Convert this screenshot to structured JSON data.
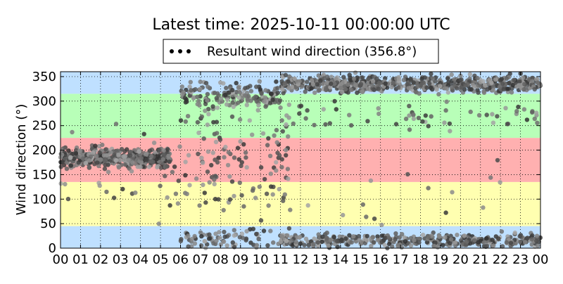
{
  "chart_data": {
    "type": "scatter",
    "title": "Latest time: 2025-10-11 00:00:00 UTC",
    "xlabel": "",
    "ylabel": "Wind direction (°)",
    "xlim": [
      0,
      24
    ],
    "ylim": [
      0,
      360
    ],
    "x_tick_labels": [
      "00",
      "01",
      "02",
      "03",
      "04",
      "05",
      "06",
      "07",
      "08",
      "09",
      "10",
      "11",
      "12",
      "13",
      "14",
      "15",
      "16",
      "17",
      "18",
      "19",
      "20",
      "21",
      "22",
      "23",
      "00"
    ],
    "y_ticks": [
      0,
      50,
      100,
      150,
      200,
      250,
      300,
      350
    ],
    "grid": true,
    "legend": {
      "placement": "top-center",
      "entries": [
        "Resultant wind direction (356.8°)"
      ]
    },
    "background_bands": [
      {
        "from": 0,
        "to": 45,
        "color": "#bfe0ff"
      },
      {
        "from": 45,
        "to": 135,
        "color": "#ffffb0"
      },
      {
        "from": 135,
        "to": 225,
        "color": "#ffb0b0"
      },
      {
        "from": 225,
        "to": 315,
        "color": "#b8ffb8"
      },
      {
        "from": 315,
        "to": 360,
        "color": "#bfe0ff"
      }
    ],
    "series": [
      {
        "name": "Resultant wind direction (356.8°)",
        "marker_color_dark": "#303030",
        "marker_color_light": "#a8a8a8",
        "clusters": [
          {
            "x_from": 0.0,
            "x_to": 5.5,
            "y_center": 185,
            "y_spread": 28,
            "count": 420
          },
          {
            "x_from": 0.0,
            "x_to": 6.0,
            "y_center": 150,
            "y_spread": 120,
            "count": 40
          },
          {
            "x_from": 6.0,
            "x_to": 11.0,
            "y_center": 310,
            "y_spread": 40,
            "count": 160
          },
          {
            "x_from": 6.0,
            "x_to": 11.5,
            "y_center": 180,
            "y_spread": 170,
            "count": 130
          },
          {
            "x_from": 6.0,
            "x_to": 11.5,
            "y_center": 20,
            "y_spread": 25,
            "count": 80
          },
          {
            "x_from": 11.0,
            "x_to": 24.0,
            "y_center": 335,
            "y_spread": 25,
            "count": 620
          },
          {
            "x_from": 11.0,
            "x_to": 24.0,
            "y_center": 15,
            "y_spread": 20,
            "count": 380
          },
          {
            "x_from": 11.0,
            "x_to": 24.0,
            "y_center": 270,
            "y_spread": 40,
            "count": 60
          },
          {
            "x_from": 12.0,
            "x_to": 23.0,
            "y_center": 100,
            "y_spread": 100,
            "count": 15
          }
        ]
      }
    ]
  }
}
